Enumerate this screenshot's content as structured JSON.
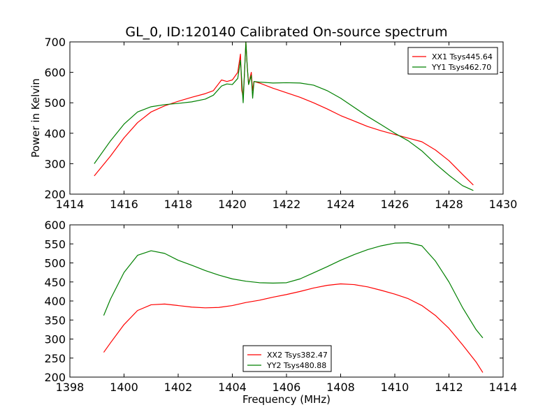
{
  "chart_data": [
    {
      "type": "line",
      "title": "GL_0, ID:120140 Calibrated On-source spectrum",
      "xlabel": "",
      "ylabel": "Power in Kelvin",
      "xlim": [
        1414,
        1430
      ],
      "ylim": [
        200,
        700
      ],
      "xticks": [
        "1414",
        "1416",
        "1418",
        "1420",
        "1422",
        "1424",
        "1426",
        "1428",
        "1430"
      ],
      "yticks": [
        "200",
        "300",
        "400",
        "500",
        "600",
        "700"
      ],
      "legend_position": "top-right",
      "series": [
        {
          "name": "XX1 Tsys445.64",
          "color": "#ff0000",
          "x": [
            1414.9,
            1415.5,
            1416.0,
            1416.5,
            1417.0,
            1417.5,
            1418.0,
            1418.5,
            1419.0,
            1419.3,
            1419.6,
            1419.8,
            1420.0,
            1420.2,
            1420.3,
            1420.35,
            1420.4,
            1420.45,
            1420.5,
            1420.55,
            1420.6,
            1420.7,
            1420.75,
            1420.8,
            1421.0,
            1421.5,
            1422.0,
            1422.5,
            1423.0,
            1423.5,
            1424.0,
            1424.5,
            1425.0,
            1425.5,
            1426.0,
            1426.5,
            1427.0,
            1427.5,
            1428.0,
            1428.5,
            1428.9
          ],
          "values": [
            260,
            325,
            385,
            435,
            470,
            490,
            505,
            518,
            530,
            540,
            575,
            570,
            575,
            600,
            660,
            540,
            520,
            600,
            700,
            620,
            560,
            600,
            540,
            570,
            565,
            548,
            533,
            518,
            500,
            480,
            458,
            440,
            422,
            408,
            396,
            384,
            372,
            345,
            310,
            265,
            230
          ]
        },
        {
          "name": "YY1 Tsys462.70",
          "color": "#008000",
          "x": [
            1414.9,
            1415.5,
            1416.0,
            1416.5,
            1417.0,
            1417.5,
            1418.0,
            1418.5,
            1419.0,
            1419.3,
            1419.6,
            1419.8,
            1420.0,
            1420.2,
            1420.3,
            1420.35,
            1420.4,
            1420.45,
            1420.5,
            1420.55,
            1420.6,
            1420.7,
            1420.75,
            1420.8,
            1421.0,
            1421.5,
            1422.0,
            1422.5,
            1423.0,
            1423.5,
            1424.0,
            1424.5,
            1425.0,
            1425.5,
            1426.0,
            1426.5,
            1427.0,
            1427.5,
            1428.0,
            1428.5,
            1428.9
          ],
          "values": [
            300,
            375,
            430,
            470,
            487,
            494,
            498,
            503,
            512,
            525,
            555,
            562,
            560,
            580,
            640,
            570,
            500,
            600,
            700,
            620,
            560,
            590,
            515,
            570,
            568,
            565,
            566,
            565,
            558,
            540,
            515,
            485,
            455,
            428,
            400,
            375,
            342,
            300,
            262,
            228,
            212
          ]
        }
      ]
    },
    {
      "type": "line",
      "title": "",
      "xlabel": "Frequency (MHz)",
      "ylabel": "",
      "xlim": [
        1398,
        1414
      ],
      "ylim": [
        200,
        600
      ],
      "xticks": [
        "1398",
        "1400",
        "1402",
        "1404",
        "1406",
        "1408",
        "1410",
        "1412",
        "1414"
      ],
      "yticks": [
        "200",
        "250",
        "300",
        "350",
        "400",
        "450",
        "500",
        "550",
        "600"
      ],
      "legend_position": "bottom-center",
      "series": [
        {
          "name": "XX2 Tsys382.47",
          "color": "#ff0000",
          "x": [
            1399.25,
            1399.5,
            1400.0,
            1400.5,
            1401.0,
            1401.5,
            1402.0,
            1402.5,
            1403.0,
            1403.5,
            1404.0,
            1404.5,
            1405.0,
            1405.5,
            1406.0,
            1406.5,
            1407.0,
            1407.5,
            1408.0,
            1408.5,
            1409.0,
            1409.5,
            1410.0,
            1410.5,
            1411.0,
            1411.5,
            1412.0,
            1412.5,
            1413.0,
            1413.25
          ],
          "values": [
            265,
            290,
            338,
            375,
            390,
            392,
            388,
            384,
            382,
            383,
            388,
            396,
            402,
            410,
            417,
            425,
            434,
            441,
            445,
            443,
            437,
            428,
            418,
            406,
            388,
            362,
            328,
            285,
            240,
            212
          ]
        },
        {
          "name": "YY2 Tsys480.88",
          "color": "#008000",
          "x": [
            1399.25,
            1399.5,
            1400.0,
            1400.5,
            1401.0,
            1401.5,
            1402.0,
            1402.5,
            1403.0,
            1403.5,
            1404.0,
            1404.5,
            1405.0,
            1405.5,
            1406.0,
            1406.5,
            1407.0,
            1407.5,
            1408.0,
            1408.5,
            1409.0,
            1409.5,
            1410.0,
            1410.5,
            1411.0,
            1411.5,
            1412.0,
            1412.5,
            1413.0,
            1413.25
          ],
          "values": [
            362,
            405,
            475,
            520,
            532,
            525,
            507,
            494,
            480,
            468,
            458,
            452,
            448,
            447,
            448,
            458,
            474,
            490,
            507,
            522,
            535,
            545,
            552,
            553,
            545,
            505,
            450,
            383,
            325,
            303
          ]
        }
      ]
    }
  ]
}
